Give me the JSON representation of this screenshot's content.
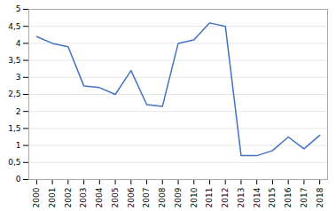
{
  "chart_data": {
    "type": "line",
    "x": [
      2000,
      2001,
      2002,
      2003,
      2004,
      2005,
      2006,
      2007,
      2008,
      2009,
      2010,
      2011,
      2012,
      2013,
      2014,
      2015,
      2016,
      2017,
      2018
    ],
    "values": [
      4.2,
      4.0,
      3.9,
      2.75,
      2.7,
      2.5,
      3.2,
      2.2,
      2.15,
      4.0,
      4.1,
      4.6,
      4.5,
      0.7,
      0.7,
      0.85,
      1.25,
      0.9,
      1.3
    ],
    "color": "#4472C4",
    "xlim": [
      1999.5,
      2018.5
    ],
    "xticks": [
      2000,
      2001,
      2002,
      2003,
      2004,
      2005,
      2006,
      2007,
      2008,
      2009,
      2010,
      2011,
      2012,
      2013,
      2014,
      2015,
      2016,
      2017,
      2018
    ],
    "ylim": [
      0,
      5
    ],
    "yticks": [
      0,
      {
        "value": 0.5,
        "label": "0,5"
      },
      1,
      {
        "value": 1.5,
        "label": "1,5"
      },
      2,
      {
        "value": 2.5,
        "label": "2,5"
      },
      3,
      {
        "value": 3.5,
        "label": "3,5"
      },
      4,
      {
        "value": 4.5,
        "label": "4,5"
      },
      5
    ],
    "grid": true
  }
}
